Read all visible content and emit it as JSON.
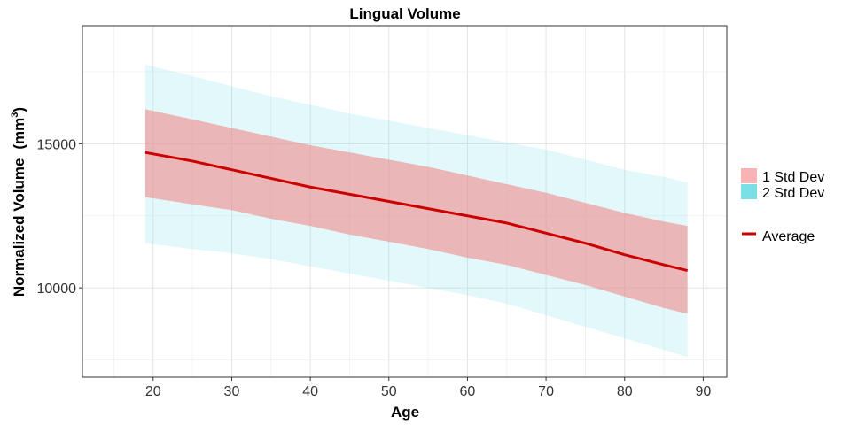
{
  "chart_data": {
    "type": "area",
    "title": "Lingual Volume",
    "xlabel": "Age",
    "ylabel": "Normalized Volume",
    "ylabel_unit": "(mm",
    "ylabel_unit_sup": "3",
    "ylabel_unit_close": ")",
    "xlim": [
      11,
      93
    ],
    "ylim": [
      6900,
      19100
    ],
    "x_ticks": [
      20,
      30,
      40,
      50,
      60,
      70,
      80,
      90
    ],
    "x_tick_labels": [
      "20",
      "30",
      "40",
      "50",
      "60",
      "70",
      "80",
      "90"
    ],
    "y_ticks": [
      10000,
      15000
    ],
    "y_tick_labels": [
      "10000",
      "15000"
    ],
    "grid": true,
    "legend_position": "right",
    "x": [
      19,
      25,
      30,
      35,
      40,
      45,
      50,
      55,
      60,
      65,
      70,
      75,
      80,
      85,
      88
    ],
    "series": [
      {
        "name": "2 Std Dev",
        "kind": "band",
        "color": "#7adfe6",
        "upper": [
          17750,
          17350,
          17000,
          16650,
          16350,
          16050,
          15800,
          15550,
          15300,
          15050,
          14800,
          14450,
          14100,
          13850,
          13650
        ],
        "lower": [
          11550,
          11350,
          11200,
          11000,
          10750,
          10500,
          10250,
          10000,
          9750,
          9450,
          9050,
          8650,
          8250,
          7850,
          7600
        ]
      },
      {
        "name": "1 Std Dev",
        "kind": "band",
        "color": "#f08080",
        "upper": [
          16200,
          15850,
          15550,
          15250,
          14950,
          14700,
          14450,
          14200,
          13900,
          13600,
          13300,
          12950,
          12600,
          12300,
          12150
        ],
        "lower": [
          13150,
          12900,
          12700,
          12400,
          12150,
          11850,
          11600,
          11350,
          11050,
          10800,
          10450,
          10100,
          9700,
          9300,
          9100
        ]
      },
      {
        "name": "Average",
        "kind": "line",
        "color": "#cc0000",
        "values": [
          14700,
          14400,
          14100,
          13800,
          13500,
          13250,
          13000,
          12750,
          12500,
          12250,
          11900,
          11550,
          11150,
          10800,
          10600
        ]
      }
    ]
  }
}
